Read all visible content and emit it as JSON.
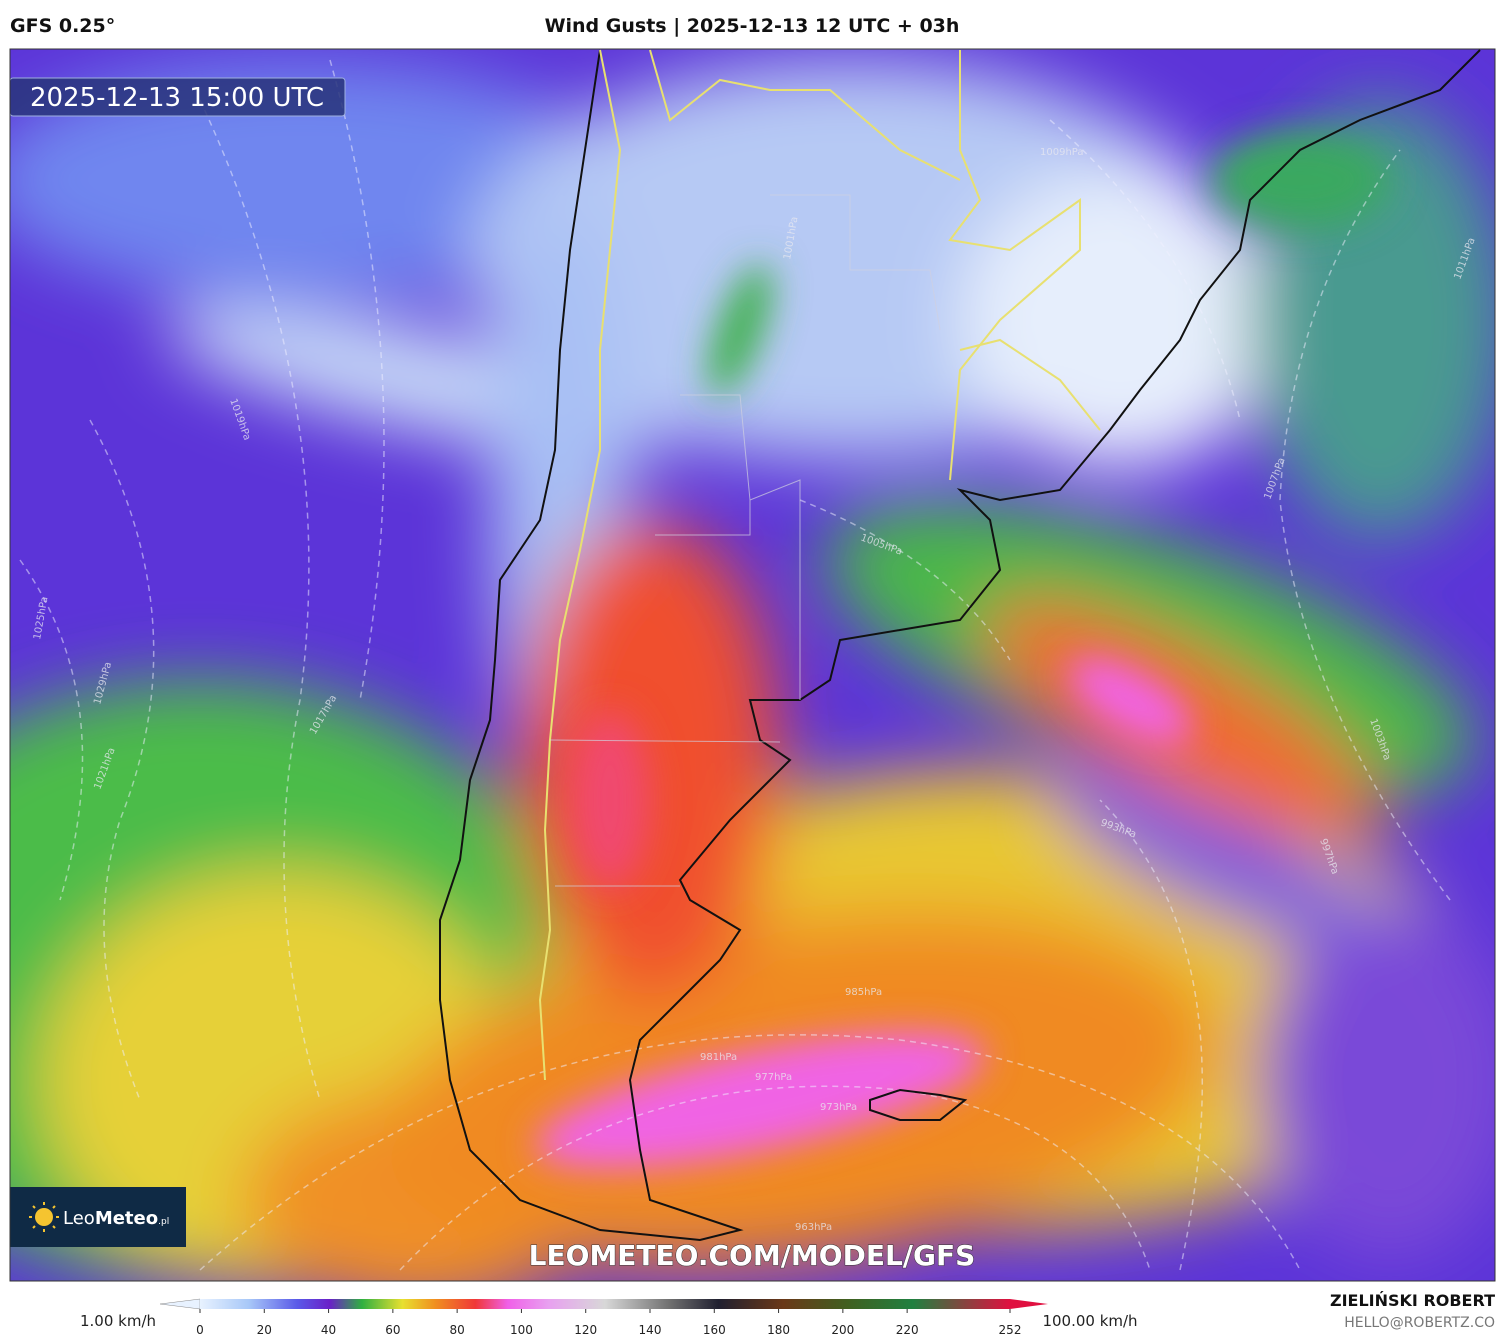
{
  "header": {
    "model": "GFS 0.25°",
    "title": "Wind Gusts | 2025-12-13 12 UTC + 03h"
  },
  "map": {
    "timestamp": "2025-12-13 15:00 UTC",
    "watermark": "LEOMETEO.COM/MODEL/GFS",
    "logo": {
      "first": "Leo",
      "second": "Meteo",
      "suffix": ".pl"
    },
    "isobar_labels": [
      "1009hPa",
      "1001hPa",
      "1005hPa",
      "1019hPa",
      "1025hPa",
      "1029hPa",
      "1021hPa",
      "1017hPa",
      "1011hPa",
      "1007hPa",
      "1003hPa",
      "997hPa",
      "993hPa",
      "985hPa",
      "981hPa",
      "977hPa",
      "973hPa",
      "963hPa"
    ]
  },
  "colorbar": {
    "min_label": "1.00 km/h",
    "max_label": "100.00 km/h",
    "ticks": [
      0,
      20,
      40,
      60,
      80,
      100,
      120,
      140,
      160,
      180,
      200,
      220,
      252
    ]
  },
  "credits": {
    "author": "ZIELIŃSKI ROBERT",
    "email": "HELLO@ROBERTZ.CO"
  }
}
